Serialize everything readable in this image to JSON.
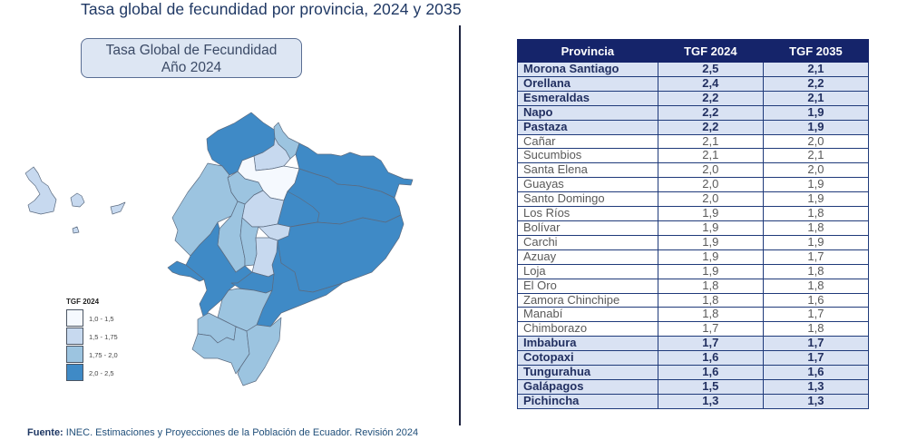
{
  "page_title": "Tasa global de fecundidad por provincia, 2024 y 2035",
  "map": {
    "title_line1": "Tasa Global de Fecundidad",
    "title_line2": "Año 2024",
    "legend": {
      "title": "TGF 2024",
      "items": [
        {
          "label": "1,0 - 1,5",
          "color": "#f5f9fe"
        },
        {
          "label": "1,5 - 1,75",
          "color": "#c7d9ef"
        },
        {
          "label": "1,75 - 2,0",
          "color": "#9cc4e0"
        },
        {
          "label": "2,0 - 2,5",
          "color": "#3f8ac6"
        }
      ]
    }
  },
  "table": {
    "headers": [
      "Provincia",
      "TGF 2024",
      "TGF 2035"
    ],
    "rows": [
      {
        "provincia": "Morona Santiago",
        "tgf2024": "2,5",
        "tgf2035": "2,1",
        "highlight": true
      },
      {
        "provincia": "Orellana",
        "tgf2024": "2,4",
        "tgf2035": "2,2",
        "highlight": true
      },
      {
        "provincia": "Esmeraldas",
        "tgf2024": "2,2",
        "tgf2035": "2,1",
        "highlight": true
      },
      {
        "provincia": "Napo",
        "tgf2024": "2,2",
        "tgf2035": "1,9",
        "highlight": true
      },
      {
        "provincia": "Pastaza",
        "tgf2024": "2,2",
        "tgf2035": "1,9",
        "highlight": true
      },
      {
        "provincia": "Cañar",
        "tgf2024": "2,1",
        "tgf2035": "2,0",
        "highlight": false
      },
      {
        "provincia": "Sucumbios",
        "tgf2024": "2,1",
        "tgf2035": "2,1",
        "highlight": false
      },
      {
        "provincia": "Santa Elena",
        "tgf2024": "2,0",
        "tgf2035": "2,0",
        "highlight": false
      },
      {
        "provincia": "Guayas",
        "tgf2024": "2,0",
        "tgf2035": "1,9",
        "highlight": false
      },
      {
        "provincia": "Santo Domingo",
        "tgf2024": "2,0",
        "tgf2035": "1,9",
        "highlight": false
      },
      {
        "provincia": "Los Ríos",
        "tgf2024": "1,9",
        "tgf2035": "1,8",
        "highlight": false
      },
      {
        "provincia": "Bolívar",
        "tgf2024": "1,9",
        "tgf2035": "1,8",
        "highlight": false
      },
      {
        "provincia": "Carchi",
        "tgf2024": "1,9",
        "tgf2035": "1,9",
        "highlight": false
      },
      {
        "provincia": "Azuay",
        "tgf2024": "1,9",
        "tgf2035": "1,7",
        "highlight": false
      },
      {
        "provincia": "Loja",
        "tgf2024": "1,9",
        "tgf2035": "1,8",
        "highlight": false
      },
      {
        "provincia": "El Oro",
        "tgf2024": "1,8",
        "tgf2035": "1,8",
        "highlight": false
      },
      {
        "provincia": "Zamora Chinchipe",
        "tgf2024": "1,8",
        "tgf2035": "1,6",
        "highlight": false
      },
      {
        "provincia": "Manabí",
        "tgf2024": "1,8",
        "tgf2035": "1,7",
        "highlight": false
      },
      {
        "provincia": "Chimborazo",
        "tgf2024": "1,7",
        "tgf2035": "1,8",
        "highlight": false
      },
      {
        "provincia": "Imbabura",
        "tgf2024": "1,7",
        "tgf2035": "1,7",
        "highlight": true
      },
      {
        "provincia": "Cotopaxi",
        "tgf2024": "1,6",
        "tgf2035": "1,7",
        "highlight": true
      },
      {
        "provincia": "Tungurahua",
        "tgf2024": "1,6",
        "tgf2035": "1,6",
        "highlight": true
      },
      {
        "provincia": "Galápagos",
        "tgf2024": "1,5",
        "tgf2035": "1,3",
        "highlight": true
      },
      {
        "provincia": "Pichincha",
        "tgf2024": "1,3",
        "tgf2035": "1,3",
        "highlight": true
      }
    ]
  },
  "source": {
    "label": "Fuente:",
    "text": " INEC. Estimaciones y Proyecciones de la Población de Ecuador. Revisión 2024"
  },
  "colors": {
    "header_bg": "#15246a",
    "highlight_row_bg": "#d9e2f3",
    "title_color": "#1f3864"
  },
  "chart_data": {
    "type": "table",
    "title": "Tasa global de fecundidad por provincia, 2024 y 2035",
    "subtitle": "Tasa Global de Fecundidad Año 2024 (choropleth map)",
    "columns": [
      "Provincia",
      "TGF 2024",
      "TGF 2035"
    ],
    "categories": [
      "Morona Santiago",
      "Orellana",
      "Esmeraldas",
      "Napo",
      "Pastaza",
      "Cañar",
      "Sucumbios",
      "Santa Elena",
      "Guayas",
      "Santo Domingo",
      "Los Ríos",
      "Bolívar",
      "Carchi",
      "Azuay",
      "Loja",
      "El Oro",
      "Zamora Chinchipe",
      "Manabí",
      "Chimborazo",
      "Imbabura",
      "Cotopaxi",
      "Tungurahua",
      "Galápagos",
      "Pichincha"
    ],
    "series": [
      {
        "name": "TGF 2024",
        "values": [
          2.5,
          2.4,
          2.2,
          2.2,
          2.2,
          2.1,
          2.1,
          2.0,
          2.0,
          2.0,
          1.9,
          1.9,
          1.9,
          1.9,
          1.9,
          1.8,
          1.8,
          1.8,
          1.7,
          1.7,
          1.6,
          1.6,
          1.5,
          1.3
        ]
      },
      {
        "name": "TGF 2035",
        "values": [
          2.1,
          2.2,
          2.1,
          1.9,
          1.9,
          2.0,
          2.1,
          2.0,
          1.9,
          1.9,
          1.8,
          1.8,
          1.9,
          1.7,
          1.8,
          1.8,
          1.6,
          1.7,
          1.8,
          1.7,
          1.7,
          1.6,
          1.3,
          1.3
        ]
      }
    ],
    "map_legend": {
      "title": "TGF 2024",
      "bins": [
        "1,0 - 1,5",
        "1,5 - 1,75",
        "1,75 - 2,0",
        "2,0 - 2,5"
      ]
    }
  }
}
